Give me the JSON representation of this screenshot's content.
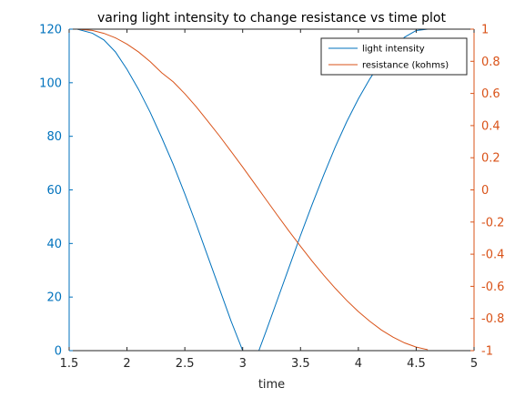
{
  "chart_data": {
    "type": "line",
    "title": "varing light intensity to change resistance vs time plot",
    "xlabel": "time",
    "ylabel_left": "",
    "ylabel_right": "",
    "xlim": [
      1.5,
      5
    ],
    "ylim_left": [
      0,
      120
    ],
    "ylim_right": [
      -1,
      1
    ],
    "x_ticks": [
      1.5,
      2,
      2.5,
      3,
      3.5,
      4,
      4.5,
      5
    ],
    "y_left_ticks": [
      0,
      20,
      40,
      60,
      80,
      100,
      120
    ],
    "y_right_ticks": [
      -1,
      -0.8,
      -0.6,
      -0.4,
      -0.2,
      0,
      0.2,
      0.4,
      0.6,
      0.8,
      1
    ],
    "grid": false,
    "legend_position": "top-right",
    "series": [
      {
        "name": "light intensity",
        "axis": "left",
        "color": "#0072BD",
        "x": [
          1.57,
          1.7,
          1.8,
          1.9,
          2.0,
          2.1,
          2.2,
          2.3,
          2.4,
          2.5,
          2.6,
          2.7,
          2.8,
          2.9,
          3.0,
          3.1,
          3.14,
          3.2,
          3.3,
          3.4,
          3.5,
          3.6,
          3.7,
          3.8,
          3.9,
          4.0,
          4.1,
          4.2,
          4.3,
          4.4,
          4.5,
          4.6
        ],
        "y": [
          120,
          118.5,
          116,
          111.5,
          105,
          97.5,
          89,
          79.5,
          69.5,
          58.5,
          47,
          35,
          23,
          11,
          0,
          0,
          0,
          7,
          19,
          31,
          43,
          54.5,
          65.5,
          76,
          85.5,
          94,
          101.5,
          108,
          113,
          117,
          119.5,
          120
        ]
      },
      {
        "name": "resistance (kohms)",
        "axis": "right",
        "color": "#D95319",
        "x": [
          1.57,
          1.7,
          1.8,
          1.9,
          2.0,
          2.1,
          2.2,
          2.3,
          2.4,
          2.5,
          2.6,
          2.7,
          2.8,
          2.9,
          3.0,
          3.1,
          3.2,
          3.3,
          3.4,
          3.5,
          3.6,
          3.7,
          3.8,
          3.9,
          4.0,
          4.1,
          4.2,
          4.3,
          4.4,
          4.5,
          4.6
        ],
        "y": [
          1.0,
          0.992,
          0.974,
          0.946,
          0.907,
          0.858,
          0.798,
          0.729,
          0.672,
          0.598,
          0.516,
          0.426,
          0.335,
          0.239,
          0.142,
          0.042,
          -0.058,
          -0.158,
          -0.256,
          -0.351,
          -0.443,
          -0.53,
          -0.612,
          -0.688,
          -0.757,
          -0.818,
          -0.872,
          -0.916,
          -0.952,
          -0.978,
          -0.994
        ]
      }
    ]
  }
}
